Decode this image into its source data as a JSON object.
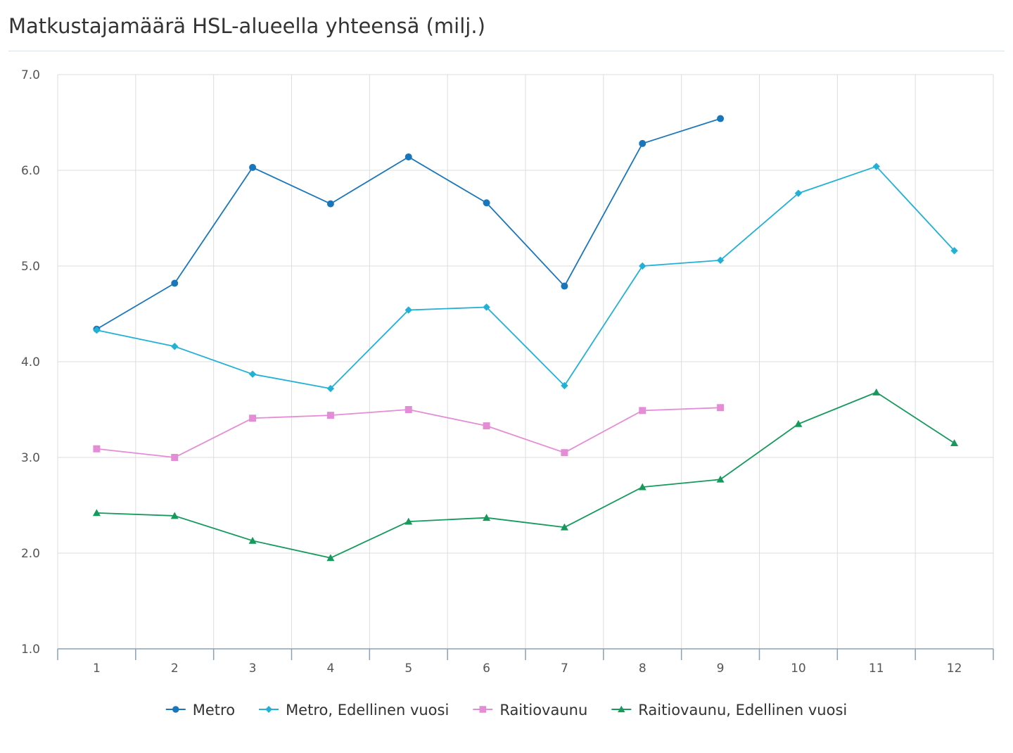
{
  "chart_data": {
    "type": "line",
    "title": "Matkustajamäärä HSL-alueella yhteensä (milj.)",
    "xlabel": "",
    "ylabel": "",
    "categories": [
      "1",
      "2",
      "3",
      "4",
      "5",
      "6",
      "7",
      "8",
      "9",
      "10",
      "11",
      "12"
    ],
    "ylim": [
      1.0,
      7.0
    ],
    "y_ticks": [
      "1.0",
      "2.0",
      "3.0",
      "4.0",
      "5.0",
      "6.0",
      "7.0"
    ],
    "grid": true,
    "legend_position": "bottom",
    "series": [
      {
        "name": "Metro",
        "color": "#1a76bb",
        "marker": "circle",
        "values": [
          4.34,
          4.82,
          6.03,
          5.65,
          6.14,
          5.66,
          4.79,
          6.28,
          6.54,
          null,
          null,
          null
        ]
      },
      {
        "name": "Metro, Edellinen vuosi",
        "color": "#22b1d6",
        "marker": "diamond",
        "values": [
          4.33,
          4.16,
          3.87,
          3.72,
          4.54,
          4.57,
          3.75,
          5.0,
          5.06,
          5.76,
          6.04,
          5.16
        ]
      },
      {
        "name": "Raitiovaunu",
        "color": "#e48dd6",
        "marker": "square",
        "values": [
          3.09,
          3.0,
          3.41,
          3.44,
          3.5,
          3.33,
          3.05,
          3.49,
          3.52,
          null,
          null,
          null
        ]
      },
      {
        "name": "Raitiovaunu, Edellinen vuosi",
        "color": "#159a5c",
        "marker": "triangle",
        "values": [
          2.42,
          2.39,
          2.13,
          1.95,
          2.33,
          2.37,
          2.27,
          2.69,
          2.77,
          3.35,
          3.68,
          3.15
        ]
      }
    ]
  }
}
